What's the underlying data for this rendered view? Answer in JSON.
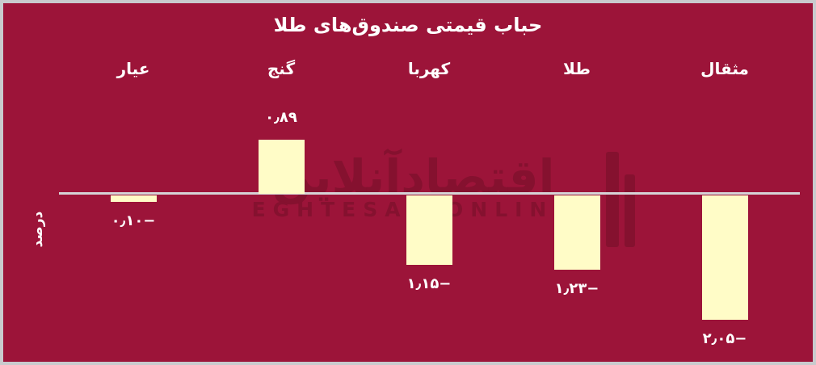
{
  "watermark": {
    "farsi": "اقتصادآنلاین",
    "latin": "EGHTESAD ONLINE"
  },
  "chart_data": {
    "type": "bar",
    "title": "حباب قیمتی صندوق‌های طلا",
    "ylabel": "درصد",
    "direction": "rtl",
    "categories": [
      "مثقال",
      "طلا",
      "کهربا",
      "گنج",
      "عیار"
    ],
    "values": [
      -2.05,
      -1.23,
      -1.15,
      0.89,
      -0.1
    ],
    "display_values": [
      "۲٫۰۵−",
      "۱٫۲۳−",
      "۱٫۱۵−",
      "۰٫۸۹",
      "۰٫۱۰−"
    ],
    "ylim": [
      -2.4,
      1.2
    ],
    "grid": false,
    "legend": "none",
    "colors": {
      "background": "#9C1439",
      "bar": "#FFFCC7",
      "axis_line": "#D6D3D6",
      "text": "#FFFFFF",
      "watermark": "#85112F",
      "frame_border": "#C9CACD"
    }
  }
}
